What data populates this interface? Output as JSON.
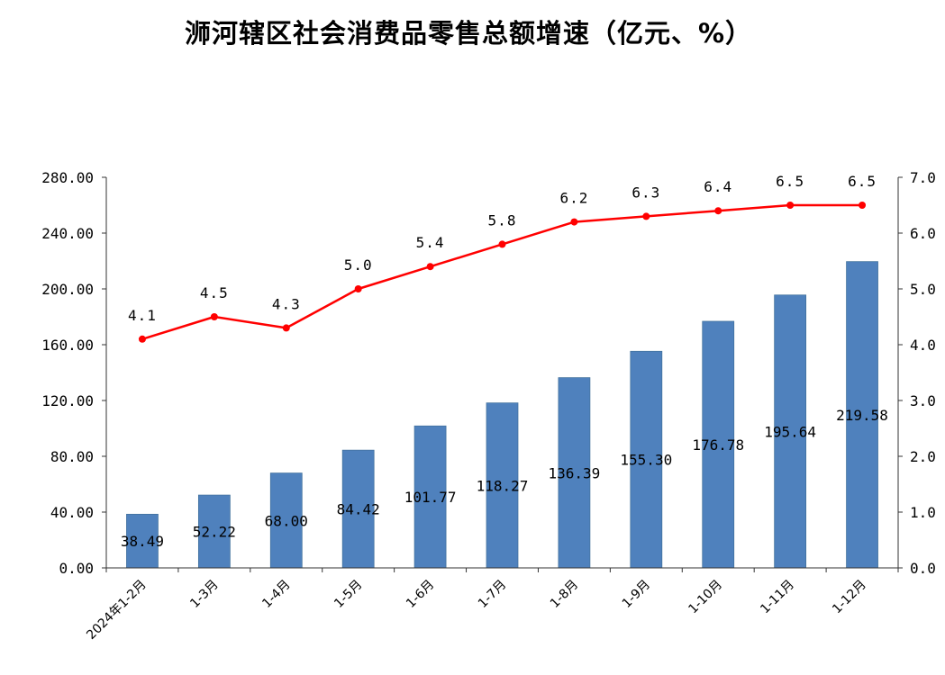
{
  "chart_data": {
    "type": "bar",
    "title": "浉河辖区社会消费品零售总额增速（亿元、%）",
    "categories": [
      "2024年1-2月",
      "1-3月",
      "1-4月",
      "1-5月",
      "1-6月",
      "1-7月",
      "1-8月",
      "1-9月",
      "1-10月",
      "1-11月",
      "1-12月"
    ],
    "series": [
      {
        "type": "bar",
        "axis": "left",
        "color": "#4F81BD",
        "values": [
          38.49,
          52.22,
          68.0,
          84.42,
          101.77,
          118.27,
          136.39,
          155.3,
          176.78,
          195.64,
          219.58
        ],
        "labels": [
          "38.49",
          "52.22",
          "68.00",
          "84.42",
          "101.77",
          "118.27",
          "136.39",
          "155.30",
          "176.78",
          "195.64",
          "219.58"
        ]
      },
      {
        "type": "line",
        "axis": "right",
        "color": "#FF0000",
        "values": [
          4.1,
          4.5,
          4.3,
          5.0,
          5.4,
          5.8,
          6.2,
          6.3,
          6.4,
          6.5,
          6.5
        ],
        "labels": [
          "4.1",
          "4.5",
          "4.3",
          "5.0",
          "5.4",
          "5.8",
          "6.2",
          "6.3",
          "6.4",
          "6.5",
          "6.5"
        ]
      }
    ],
    "y_left": {
      "range": [
        0,
        280
      ],
      "ticks": [
        "0.00",
        "40.00",
        "80.00",
        "120.00",
        "160.00",
        "200.00",
        "240.00",
        "280.00"
      ]
    },
    "y_right": {
      "range": [
        0,
        7
      ],
      "ticks": [
        "0.0",
        "1.0",
        "2.0",
        "3.0",
        "4.0",
        "5.0",
        "6.0",
        "7.0"
      ]
    },
    "grid": false,
    "legend": false
  }
}
